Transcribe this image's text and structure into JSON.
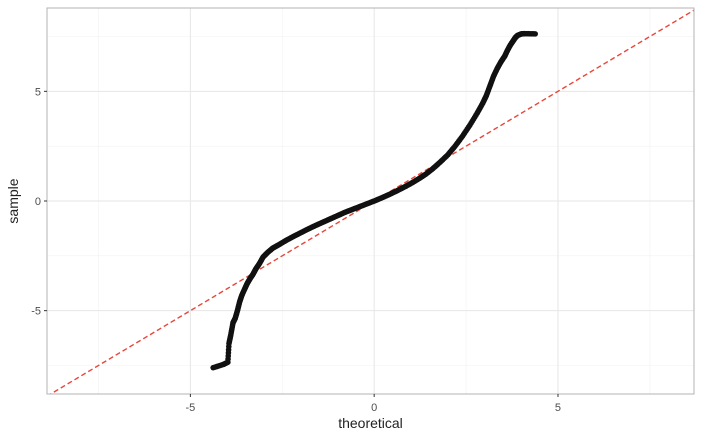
{
  "chart_data": {
    "type": "scatter",
    "subtype": "qq-plot",
    "title": "",
    "xlabel": "theoretical",
    "ylabel": "sample",
    "xlim": [
      -8.9,
      8.7
    ],
    "ylim": [
      -8.8,
      8.8
    ],
    "x_ticks": [
      -5,
      0,
      5
    ],
    "y_ticks": [
      -5,
      0,
      5
    ],
    "x_tick_labels": [
      "-5",
      "0",
      "5"
    ],
    "y_tick_labels": [
      "-5",
      "0",
      "5"
    ],
    "grid": true,
    "legend": "none",
    "reference_line": {
      "slope": 1,
      "intercept": 0,
      "style": "dashed",
      "color": "#e8463a"
    },
    "series": [
      {
        "color": "#111111",
        "x": [
          -4.38,
          -4.1,
          -3.98,
          -3.95,
          -3.9,
          -3.84,
          -3.78,
          -3.72,
          -3.66,
          -3.6,
          -3.52,
          -3.45,
          -3.38,
          -3.3,
          -3.22,
          -3.12,
          -3.02,
          -2.9,
          -2.76,
          -2.6,
          -2.4,
          -2.2,
          -2.0,
          -1.8,
          -1.6,
          -1.4,
          -1.2,
          -1.0,
          -0.8,
          -0.6,
          -0.4,
          -0.2,
          0.0,
          0.2,
          0.4,
          0.6,
          0.8,
          1.0,
          1.2,
          1.4,
          1.6,
          1.8,
          2.0,
          2.2,
          2.4,
          2.6,
          2.8,
          2.95,
          3.05,
          3.15,
          3.25,
          3.35,
          3.45,
          3.55,
          3.62,
          3.7,
          3.78,
          3.84,
          3.9,
          4.0,
          4.1,
          4.38
        ],
        "values": [
          -7.6,
          -7.45,
          -7.35,
          -6.5,
          -6.1,
          -5.55,
          -5.35,
          -5.0,
          -4.6,
          -4.3,
          -4.0,
          -3.75,
          -3.55,
          -3.35,
          -3.1,
          -2.85,
          -2.55,
          -2.35,
          -2.15,
          -2.0,
          -1.8,
          -1.62,
          -1.45,
          -1.28,
          -1.12,
          -0.97,
          -0.82,
          -0.67,
          -0.52,
          -0.39,
          -0.26,
          -0.13,
          0.0,
          0.14,
          0.29,
          0.45,
          0.62,
          0.8,
          1.0,
          1.22,
          1.48,
          1.78,
          2.1,
          2.5,
          2.95,
          3.45,
          4.0,
          4.45,
          4.8,
          5.25,
          5.7,
          6.05,
          6.35,
          6.6,
          6.85,
          7.1,
          7.3,
          7.45,
          7.55,
          7.62,
          7.63,
          7.62
        ]
      }
    ]
  }
}
